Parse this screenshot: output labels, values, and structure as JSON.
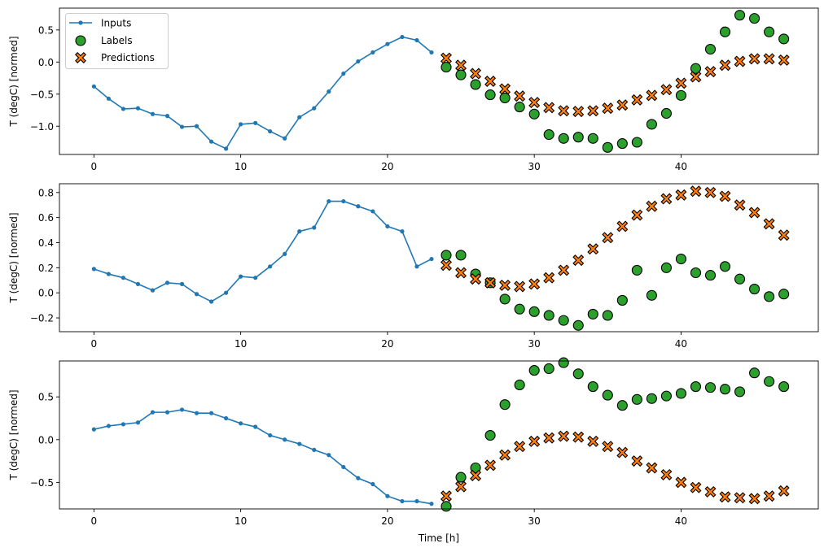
{
  "chart_data": [
    {
      "type": "line",
      "ylabel": "T (degC) [normed]",
      "xlabel": "",
      "xlim": [
        -2.35,
        49.35
      ],
      "ylim": [
        -1.44,
        0.84
      ],
      "xticks": [
        0,
        10,
        20,
        30,
        40
      ],
      "xtick_labels": [
        "0",
        "10",
        "20",
        "30",
        "40"
      ],
      "yticks": [
        0.5,
        0.0,
        -0.5,
        -1.0
      ],
      "ytick_labels": [
        "0.5",
        "0.0",
        "−0.5",
        "−1.0"
      ],
      "grid": false,
      "legend": {
        "placement": "upper-left",
        "entries": [
          "Inputs",
          "Labels",
          "Predictions"
        ]
      },
      "inputs": {
        "x_start": 0,
        "values": [
          -0.38,
          -0.57,
          -0.73,
          -0.72,
          -0.81,
          -0.84,
          -1.01,
          -1.0,
          -1.24,
          -1.35,
          -0.97,
          -0.95,
          -1.08,
          -1.19,
          -0.86,
          -0.72,
          -0.46,
          -0.18,
          0.01,
          0.15,
          0.28,
          0.39,
          0.34,
          0.15
        ]
      },
      "labels": {
        "x_start": 24,
        "values": [
          -0.08,
          -0.2,
          -0.35,
          -0.51,
          -0.56,
          -0.7,
          -0.81,
          -1.13,
          -1.19,
          -1.17,
          -1.19,
          -1.33,
          -1.27,
          -1.25,
          -0.97,
          -0.8,
          -0.52,
          -0.1,
          0.2,
          0.47,
          0.73,
          0.68,
          0.47,
          0.36
        ]
      },
      "predictions": {
        "x_start": 24,
        "values": [
          0.06,
          -0.05,
          -0.18,
          -0.3,
          -0.42,
          -0.53,
          -0.63,
          -0.71,
          -0.76,
          -0.77,
          -0.76,
          -0.72,
          -0.67,
          -0.59,
          -0.52,
          -0.43,
          -0.33,
          -0.23,
          -0.15,
          -0.05,
          0.01,
          0.05,
          0.05,
          0.03
        ]
      }
    },
    {
      "type": "line",
      "ylabel": "T (degC) [normed]",
      "xlabel": "",
      "xlim": [
        -2.35,
        49.35
      ],
      "ylim": [
        -0.31,
        0.87
      ],
      "xticks": [
        0,
        10,
        20,
        30,
        40
      ],
      "xtick_labels": [
        "0",
        "10",
        "20",
        "30",
        "40"
      ],
      "yticks": [
        0.8,
        0.6,
        0.4,
        0.2,
        0.0,
        -0.2
      ],
      "ytick_labels": [
        "0.8",
        "0.6",
        "0.4",
        "0.2",
        "0.0",
        "−0.2"
      ],
      "grid": false,
      "inputs": {
        "x_start": 0,
        "values": [
          0.19,
          0.15,
          0.12,
          0.07,
          0.02,
          0.08,
          0.07,
          -0.01,
          -0.07,
          0.0,
          0.13,
          0.12,
          0.21,
          0.31,
          0.49,
          0.52,
          0.73,
          0.73,
          0.69,
          0.65,
          0.53,
          0.49,
          0.21,
          0.27
        ]
      },
      "labels": {
        "x_start": 24,
        "values": [
          0.3,
          0.3,
          0.15,
          0.08,
          -0.05,
          -0.13,
          -0.15,
          -0.18,
          -0.22,
          -0.26,
          -0.17,
          -0.18,
          -0.06,
          0.18,
          -0.02,
          0.2,
          0.27,
          0.16,
          0.14,
          0.21,
          0.11,
          0.03,
          -0.03,
          -0.01
        ]
      },
      "predictions": {
        "x_start": 24,
        "values": [
          0.22,
          0.16,
          0.11,
          0.08,
          0.06,
          0.05,
          0.07,
          0.12,
          0.18,
          0.26,
          0.35,
          0.44,
          0.53,
          0.62,
          0.69,
          0.75,
          0.78,
          0.81,
          0.8,
          0.77,
          0.7,
          0.64,
          0.55,
          0.46
        ]
      }
    },
    {
      "type": "line",
      "ylabel": "T (degC) [normed]",
      "xlabel": "Time [h]",
      "xlim": [
        -2.35,
        49.35
      ],
      "ylim": [
        -0.81,
        0.92
      ],
      "xticks": [
        0,
        10,
        20,
        30,
        40
      ],
      "xtick_labels": [
        "0",
        "10",
        "20",
        "30",
        "40"
      ],
      "yticks": [
        0.5,
        0.0,
        -0.5
      ],
      "ytick_labels": [
        "0.5",
        "0.0",
        "−0.5"
      ],
      "grid": false,
      "inputs": {
        "x_start": 0,
        "values": [
          0.12,
          0.16,
          0.18,
          0.2,
          0.32,
          0.32,
          0.35,
          0.31,
          0.31,
          0.25,
          0.19,
          0.15,
          0.05,
          0.0,
          -0.05,
          -0.12,
          -0.18,
          -0.32,
          -0.45,
          -0.52,
          -0.66,
          -0.72,
          -0.72,
          -0.75
        ]
      },
      "labels": {
        "x_start": 24,
        "values": [
          -0.78,
          -0.44,
          -0.33,
          0.05,
          0.41,
          0.64,
          0.81,
          0.83,
          0.9,
          0.77,
          0.62,
          0.52,
          0.4,
          0.47,
          0.48,
          0.51,
          0.54,
          0.62,
          0.61,
          0.59,
          0.56,
          0.78,
          0.68,
          0.62
        ]
      },
      "predictions": {
        "x_start": 24,
        "values": [
          -0.66,
          -0.55,
          -0.42,
          -0.3,
          -0.18,
          -0.08,
          -0.02,
          0.02,
          0.04,
          0.03,
          -0.02,
          -0.08,
          -0.15,
          -0.25,
          -0.33,
          -0.41,
          -0.5,
          -0.56,
          -0.61,
          -0.67,
          -0.68,
          -0.69,
          -0.66,
          -0.6
        ]
      }
    }
  ],
  "colors": {
    "inputs": "#1f77b4",
    "labels": "#2ca02c",
    "predictions": "#ff7f0e",
    "marker_edge": "#000000"
  }
}
